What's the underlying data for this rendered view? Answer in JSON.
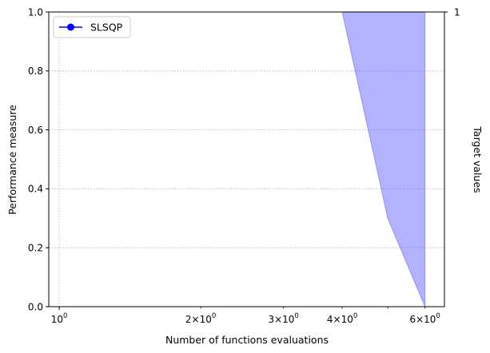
{
  "chart_data": {
    "type": "area",
    "title": "",
    "xlabel": "Number of functions evaluations",
    "ylabel": "Performance measure",
    "ylabel_right": "Target values",
    "xscale": "log",
    "xlim": [
      0.95,
      6.6
    ],
    "ylim": [
      0,
      1
    ],
    "x_ticks": [
      {
        "value": 1,
        "label": "10^0",
        "base": "10",
        "exp": "0"
      },
      {
        "value": 2,
        "label": "2×10^0",
        "base": "2×10",
        "exp": "0"
      },
      {
        "value": 3,
        "label": "3×10^0",
        "base": "3×10",
        "exp": "0"
      },
      {
        "value": 4,
        "label": "4×10^0",
        "base": "4×10",
        "exp": "0"
      },
      {
        "value": 6,
        "label": "6×10^0",
        "base": "6×10",
        "exp": "0"
      }
    ],
    "y_ticks": [
      "0.0",
      "0.2",
      "0.4",
      "0.6",
      "0.8",
      "1.0"
    ],
    "y_right_ticks": [
      "1"
    ],
    "grid": true,
    "legend": {
      "position": "top-left",
      "entries": [
        "SLSQP"
      ]
    },
    "series": [
      {
        "name": "SLSQP",
        "color": "#0000ff",
        "fill_color": "#6666ff",
        "marker": "circle",
        "band_upper": [
          [
            4,
            1.0
          ],
          [
            6,
            1.0
          ]
        ],
        "band_lower": [
          [
            4,
            1.0
          ],
          [
            5,
            0.3
          ],
          [
            6,
            0.0
          ]
        ]
      }
    ]
  }
}
